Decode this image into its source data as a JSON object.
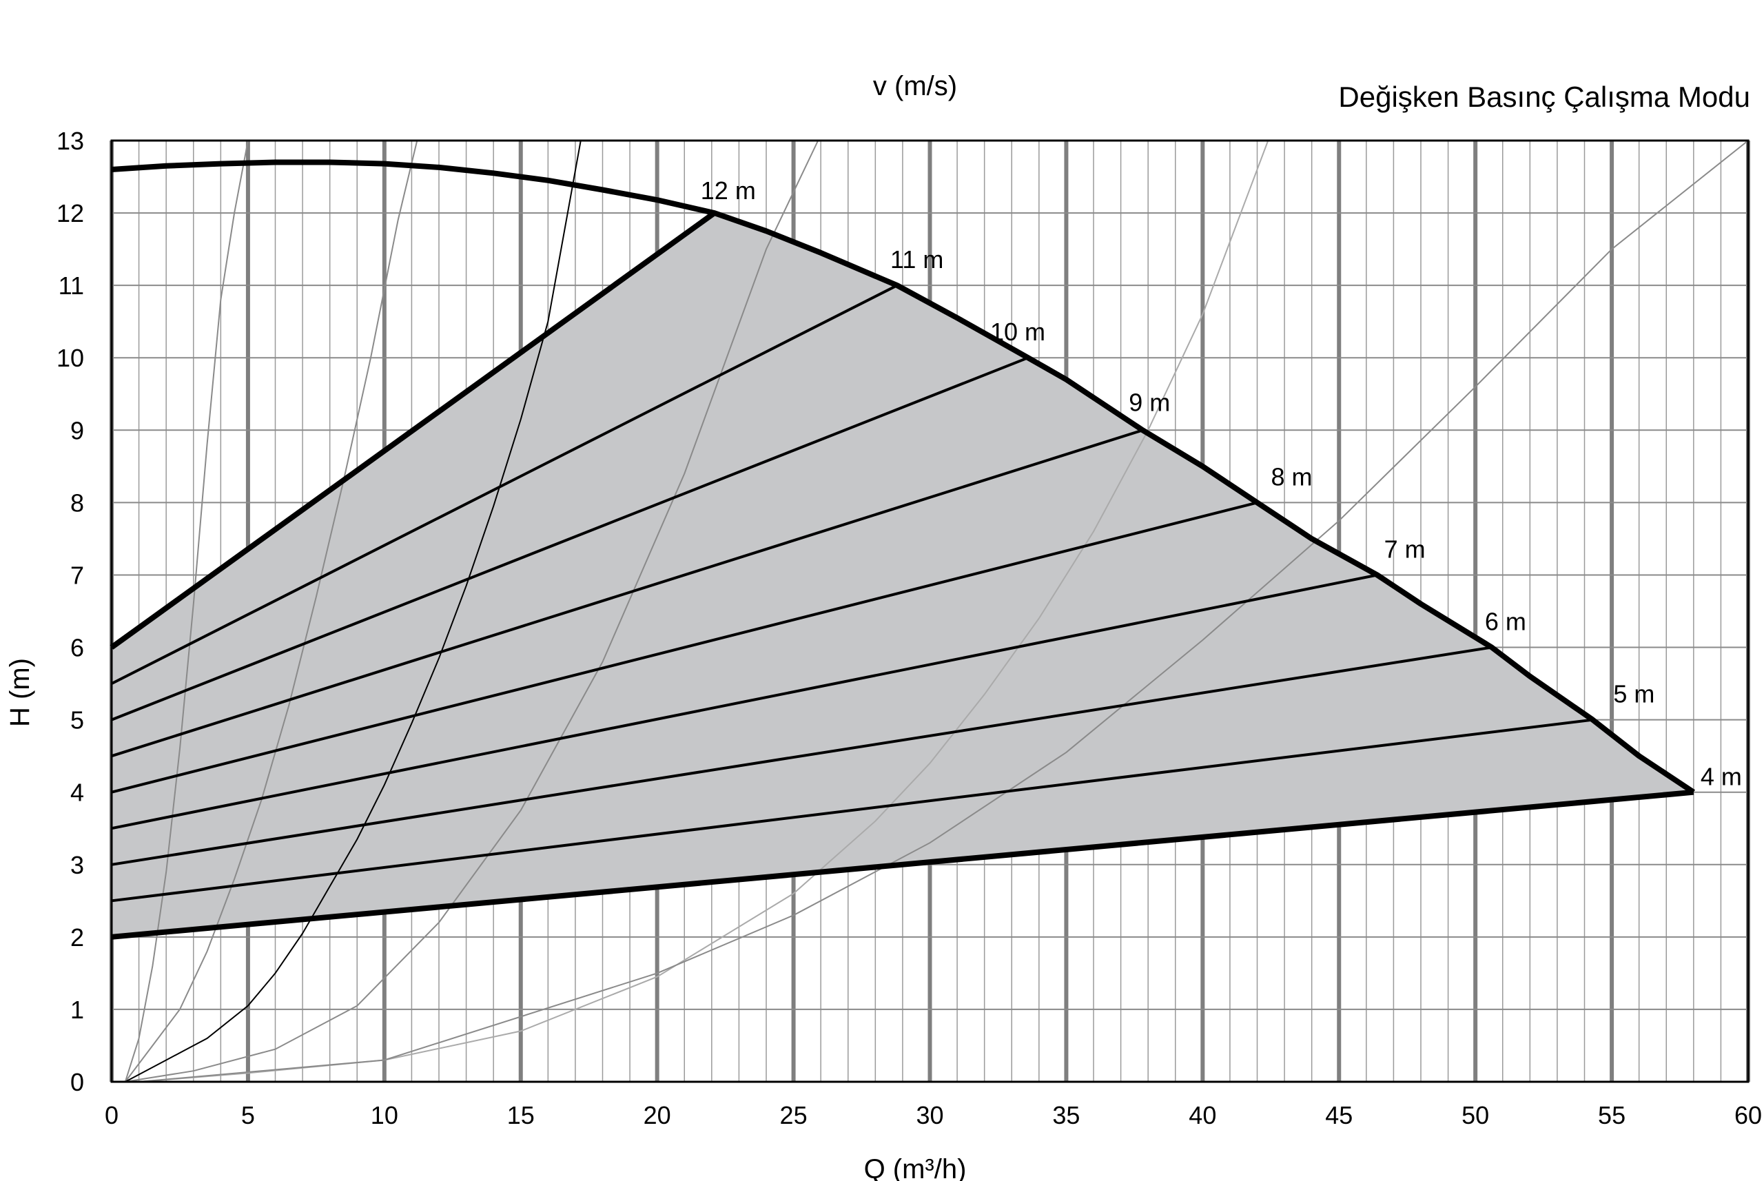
{
  "chart_data": {
    "type": "line",
    "title": "Değişken Basınç Çalışma Modu",
    "top_axis_label": "v (m/s)",
    "xlabel": "Q (m³/h)",
    "ylabel": "H (m)",
    "xlim": [
      0,
      60
    ],
    "ylim": [
      0,
      13
    ],
    "x_ticks": [
      "0",
      "5",
      "10",
      "15",
      "20",
      "25",
      "30",
      "35",
      "40",
      "45",
      "50",
      "55",
      "60"
    ],
    "y_ticks": [
      "0",
      "1",
      "2",
      "3",
      "4",
      "5",
      "6",
      "7",
      "8",
      "9",
      "10",
      "11",
      "12",
      "13"
    ],
    "grid": true,
    "fill_color": "#c6c7c9",
    "max_curve": {
      "x": [
        0,
        2,
        4,
        6,
        8,
        10,
        12,
        14,
        16,
        18,
        20,
        22.1,
        24,
        26,
        28.8,
        31,
        33.6,
        35,
        37.8,
        40,
        42,
        44,
        46.4,
        48,
        50.6,
        52,
        54.3,
        56,
        58
      ],
      "y": [
        12.6,
        12.65,
        12.68,
        12.7,
        12.7,
        12.68,
        12.63,
        12.55,
        12.45,
        12.32,
        12.18,
        12.0,
        11.75,
        11.45,
        11.0,
        10.55,
        10.0,
        9.7,
        9.0,
        8.5,
        8.0,
        7.5,
        7.0,
        6.6,
        6.0,
        5.6,
        5.0,
        4.5,
        4.0
      ]
    },
    "min_curve": {
      "x": [
        0,
        58
      ],
      "y": [
        2.0,
        4.0
      ]
    },
    "control_lines": [
      {
        "label": "12 m",
        "x": [
          0,
          22.1
        ],
        "y": [
          6.0,
          12.0
        ]
      },
      {
        "label": "11 m",
        "x": [
          0,
          28.8
        ],
        "y": [
          5.5,
          11.0
        ]
      },
      {
        "label": "10 m",
        "x": [
          0,
          33.6
        ],
        "y": [
          5.0,
          10.0
        ]
      },
      {
        "label": "9 m",
        "x": [
          0,
          37.8
        ],
        "y": [
          4.5,
          9.0
        ]
      },
      {
        "label": "8 m",
        "x": [
          0,
          42.0
        ],
        "y": [
          4.0,
          8.0
        ]
      },
      {
        "label": "7 m",
        "x": [
          0,
          46.4
        ],
        "y": [
          3.5,
          7.0
        ]
      },
      {
        "label": "6 m",
        "x": [
          0,
          50.6
        ],
        "y": [
          3.0,
          6.0
        ]
      },
      {
        "label": "5 m",
        "x": [
          0,
          54.3
        ],
        "y": [
          2.5,
          5.0
        ]
      },
      {
        "label": "4 m",
        "x": [
          0,
          58.0
        ],
        "y": [
          2.0,
          4.0
        ]
      }
    ],
    "system_curves": [
      {
        "x": [
          0.5,
          1.0,
          1.5,
          2.0,
          2.5,
          3.0,
          3.5,
          4.0,
          4.5,
          5.0
        ],
        "y": [
          0.0,
          0.6,
          1.6,
          2.9,
          4.6,
          6.6,
          8.8,
          10.8,
          12.0,
          13.0
        ],
        "color": "#8a8a8a"
      },
      {
        "x": [
          0.5,
          1.5,
          2.5,
          3.5,
          4.5,
          5.5,
          6.5,
          7.5,
          8.5,
          9.5,
          10.5,
          11.2
        ],
        "y": [
          0.0,
          0.5,
          1.0,
          1.8,
          2.8,
          3.9,
          5.2,
          6.7,
          8.3,
          10.0,
          11.9,
          13.0
        ],
        "color": "#8a8a8a"
      },
      {
        "x": [
          0.5,
          2,
          3.5,
          5,
          6,
          7,
          8,
          9,
          10,
          11,
          12,
          13,
          14,
          15,
          16,
          17.2
        ],
        "y": [
          0.0,
          0.3,
          0.6,
          1.05,
          1.5,
          2.05,
          2.7,
          3.35,
          4.1,
          4.95,
          5.85,
          6.85,
          7.95,
          9.15,
          10.5,
          13.0
        ],
        "color": "#000000"
      },
      {
        "x": [
          0.5,
          3,
          6,
          9,
          12,
          15,
          18,
          21,
          24,
          25.9
        ],
        "y": [
          0.0,
          0.15,
          0.45,
          1.05,
          2.2,
          3.75,
          5.8,
          8.4,
          11.5,
          13.0
        ],
        "color": "#8a8a8a"
      },
      {
        "x": [
          1,
          5,
          10,
          15,
          20,
          25,
          28,
          30,
          32,
          34,
          36,
          38,
          40,
          42.4
        ],
        "y": [
          0.0,
          0.12,
          0.3,
          0.7,
          1.45,
          2.6,
          3.6,
          4.4,
          5.35,
          6.4,
          7.6,
          9.0,
          10.6,
          13.0
        ],
        "color": "#aaaaaa"
      },
      {
        "x": [
          1,
          10,
          20,
          25,
          30,
          35,
          40,
          45,
          50,
          55,
          60
        ],
        "y": [
          0.0,
          0.3,
          1.5,
          2.3,
          3.3,
          4.55,
          6.1,
          7.75,
          9.6,
          11.5,
          13.0
        ],
        "color": "#8a8a8a"
      }
    ],
    "legend": "none"
  }
}
